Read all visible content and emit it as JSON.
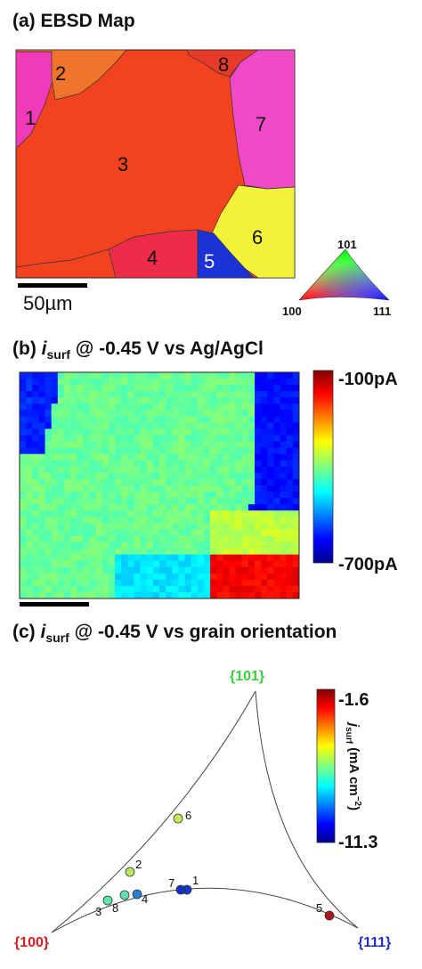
{
  "panel_a": {
    "title": "(a) EBSD Map",
    "grain_labels": [
      "1",
      "2",
      "3",
      "4",
      "5",
      "6",
      "7",
      "8"
    ],
    "scale_label": "50µm",
    "legend": {
      "top": "101",
      "left": "100",
      "right": "111"
    },
    "colors": {
      "grain1": "#f03ab8",
      "grain2": "#f0742a",
      "grain3": "#f2421e",
      "grain4": "#ee2b49",
      "grain5": "#1a32d6",
      "grain6": "#f2f23a",
      "grain7": "#f04ac8",
      "grain8": "#e83a2a"
    }
  },
  "panel_b": {
    "title_i": "i",
    "title_sub": "surf",
    "title_rest": " @ -0.45 V vs Ag/AgCl",
    "title_prefix": "(b) ",
    "colorbar": {
      "max_label": "-100pA",
      "min_label": "-700pA"
    }
  },
  "panel_c": {
    "title_prefix": "(c) ",
    "title_i": "i",
    "title_sub": "surf",
    "title_rest": " @ -0.45 V vs grain orientation",
    "corners": {
      "top": "{101}",
      "left": "{100}",
      "right": "{111}"
    },
    "corner_colors": {
      "top": "#3ad13a",
      "left": "#d42020",
      "right": "#2030c8"
    },
    "colorbar": {
      "max_label": "-1.6",
      "min_label": "-11.3",
      "axis_j": "j",
      "axis_sub": "surf",
      "axis_rest": " (mA cm",
      "axis_sup": "−2",
      "axis_close": ")"
    },
    "points": [
      {
        "label": "1",
        "color": "#1838c8"
      },
      {
        "label": "2",
        "color": "#bce860"
      },
      {
        "label": "3",
        "color": "#5ce8a8"
      },
      {
        "label": "4",
        "color": "#2880d8"
      },
      {
        "label": "5",
        "color": "#a81818"
      },
      {
        "label": "6",
        "color": "#c8ec5a"
      },
      {
        "label": "7",
        "color": "#1530c0"
      },
      {
        "label": "8",
        "color": "#60e0b0"
      }
    ]
  }
}
